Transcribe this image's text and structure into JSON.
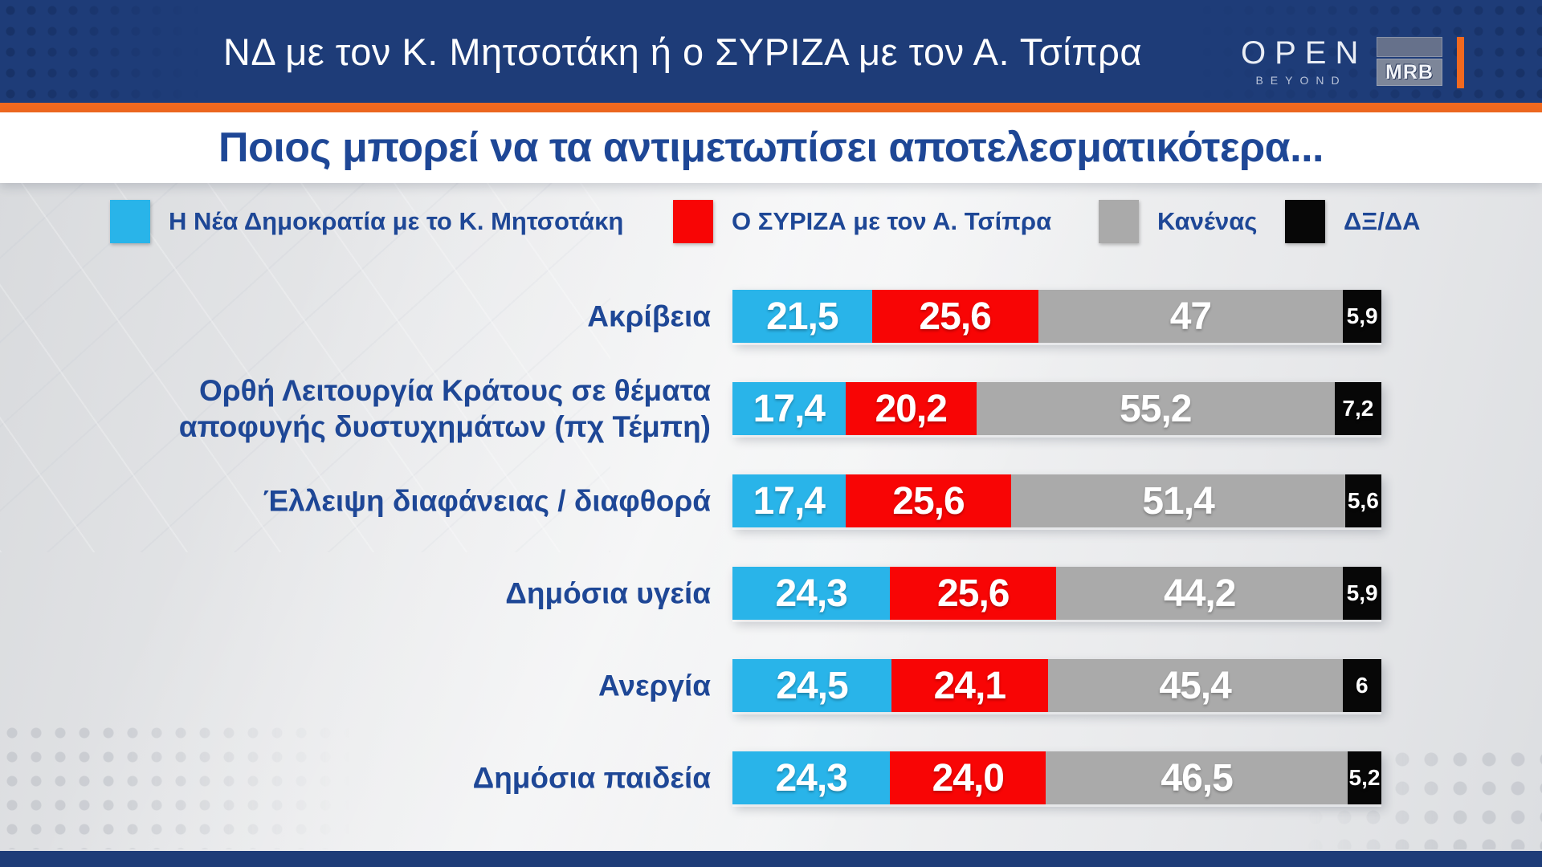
{
  "header": {
    "title": "ΝΔ με τον Κ. Μητσοτάκη ή ο ΣΥΡΙΖΑ με τον Α. Τσίπρα",
    "channel_logo": {
      "name": "OPEN",
      "tagline": "BEYOND"
    },
    "pollster_logo": "MRB"
  },
  "subtitle": "Ποιος μπορεί να τα αντιμετωπίσει αποτελεσματικότερα...",
  "legend": {
    "items": [
      {
        "label": "Η Νέα Δημοκρατία με το Κ. Μητσοτάκη",
        "color": "#29b4e9"
      },
      {
        "label": "Ο ΣΥΡΙΖΑ με τον Α. Τσίπρα",
        "color": "#f80505"
      },
      {
        "label": "Κανένας",
        "color": "#aaaaaa"
      },
      {
        "label": "ΔΞ/ΔΑ",
        "color": "#070707"
      }
    ]
  },
  "chart_data": {
    "type": "bar",
    "stacked": true,
    "orientation": "horizontal",
    "value_unit": "percent",
    "xlim": [
      0,
      100
    ],
    "grid": false,
    "legend_position": "top",
    "series_names": [
      "Η Νέα Δημοκρατία με το Κ. Μητσοτάκη",
      "Ο ΣΥΡΙΖΑ με τον Α. Τσίπρα",
      "Κανένας",
      "ΔΞ/ΔΑ"
    ],
    "series_colors": [
      "#29b4e9",
      "#f80505",
      "#aaaaaa",
      "#070707"
    ],
    "categories": [
      "Ακρίβεια",
      "Ορθή Λειτουργία Κράτους σε θέματα αποφυγής δυστυχημάτων (πχ Τέμπη)",
      "Έλλειψη διαφάνειας / διαφθορά",
      "Δημόσια υγεία",
      "Ανεργία",
      "Δημόσια παιδεία"
    ],
    "rows": [
      {
        "label": "Ακρίβεια",
        "label2": "",
        "values": [
          21.5,
          25.6,
          47,
          5.9
        ],
        "display": [
          "21,5",
          "25,6",
          "47",
          "5,9"
        ]
      },
      {
        "label": "Ορθή Λειτουργία Κράτους σε θέματα",
        "label2": "αποφυγής δυστυχημάτων (πχ Τέμπη)",
        "values": [
          17.4,
          20.2,
          55.2,
          7.2
        ],
        "display": [
          "17,4",
          "20,2",
          "55,2",
          "7,2"
        ]
      },
      {
        "label": "Έλλειψη διαφάνειας / διαφθορά",
        "label2": "",
        "values": [
          17.4,
          25.6,
          51.4,
          5.6
        ],
        "display": [
          "17,4",
          "25,6",
          "51,4",
          "5,6"
        ]
      },
      {
        "label": "Δημόσια υγεία",
        "label2": "",
        "values": [
          24.3,
          25.6,
          44.2,
          5.9
        ],
        "display": [
          "24,3",
          "25,6",
          "44,2",
          "5,9"
        ]
      },
      {
        "label": "Ανεργία",
        "label2": "",
        "values": [
          24.5,
          24.1,
          45.4,
          6
        ],
        "display": [
          "24,5",
          "24,1",
          "45,4",
          "6"
        ]
      },
      {
        "label": "Δημόσια παιδεία",
        "label2": "",
        "values": [
          24.3,
          24.0,
          46.5,
          5.2
        ],
        "display": [
          "24,3",
          "24,0",
          "46,5",
          "5,2"
        ]
      }
    ]
  },
  "colors": {
    "header_bg": "#1e3c78",
    "accent_orange": "#f1691f",
    "title_text": "#ffffff",
    "subtitle_text": "#1e4796",
    "label_text": "#1e4796",
    "bar_value_text": "#ffffff"
  }
}
